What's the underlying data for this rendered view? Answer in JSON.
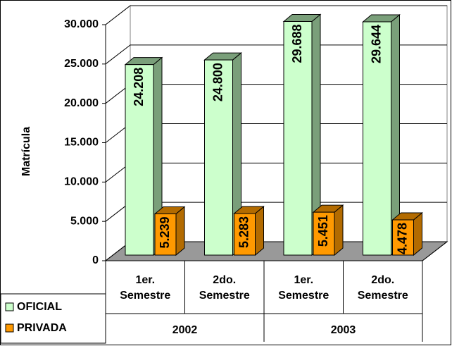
{
  "chart_data": {
    "type": "bar3d",
    "y_label": "Matrícula",
    "categories": [
      "1er. Semestre",
      "2do. Semestre",
      "1er. Semestre",
      "2do. Semestre"
    ],
    "groups": [
      {
        "label": "2002",
        "span": 2
      },
      {
        "label": "2003",
        "span": 2
      }
    ],
    "series": [
      {
        "name": "OFICIAL",
        "color": "#ccffcc",
        "side": "#7a9f7a",
        "values": [
          24208,
          24800,
          29688,
          29644
        ],
        "value_labels": [
          "24.208",
          "24.800",
          "29.688",
          "29.644"
        ]
      },
      {
        "name": "PRIVADA",
        "color": "#ff9900",
        "side": "#b36b00",
        "values": [
          5239,
          5283,
          5451,
          4478
        ],
        "value_labels": [
          "5.239",
          "5.283",
          "5.451",
          "4.478"
        ]
      }
    ],
    "ylim": [
      0,
      30000
    ],
    "yticks": [
      0,
      {
        "value": 5000,
        "label": "5.000"
      },
      {
        "value": 10000,
        "label": "10.000"
      },
      {
        "value": 15000,
        "label": "15.000"
      },
      {
        "value": 20000,
        "label": "20.000"
      },
      {
        "value": 25000,
        "label": "25.000"
      },
      {
        "value": 30000,
        "label": "30.000"
      }
    ],
    "grid": true,
    "legend": "bottom-left"
  }
}
